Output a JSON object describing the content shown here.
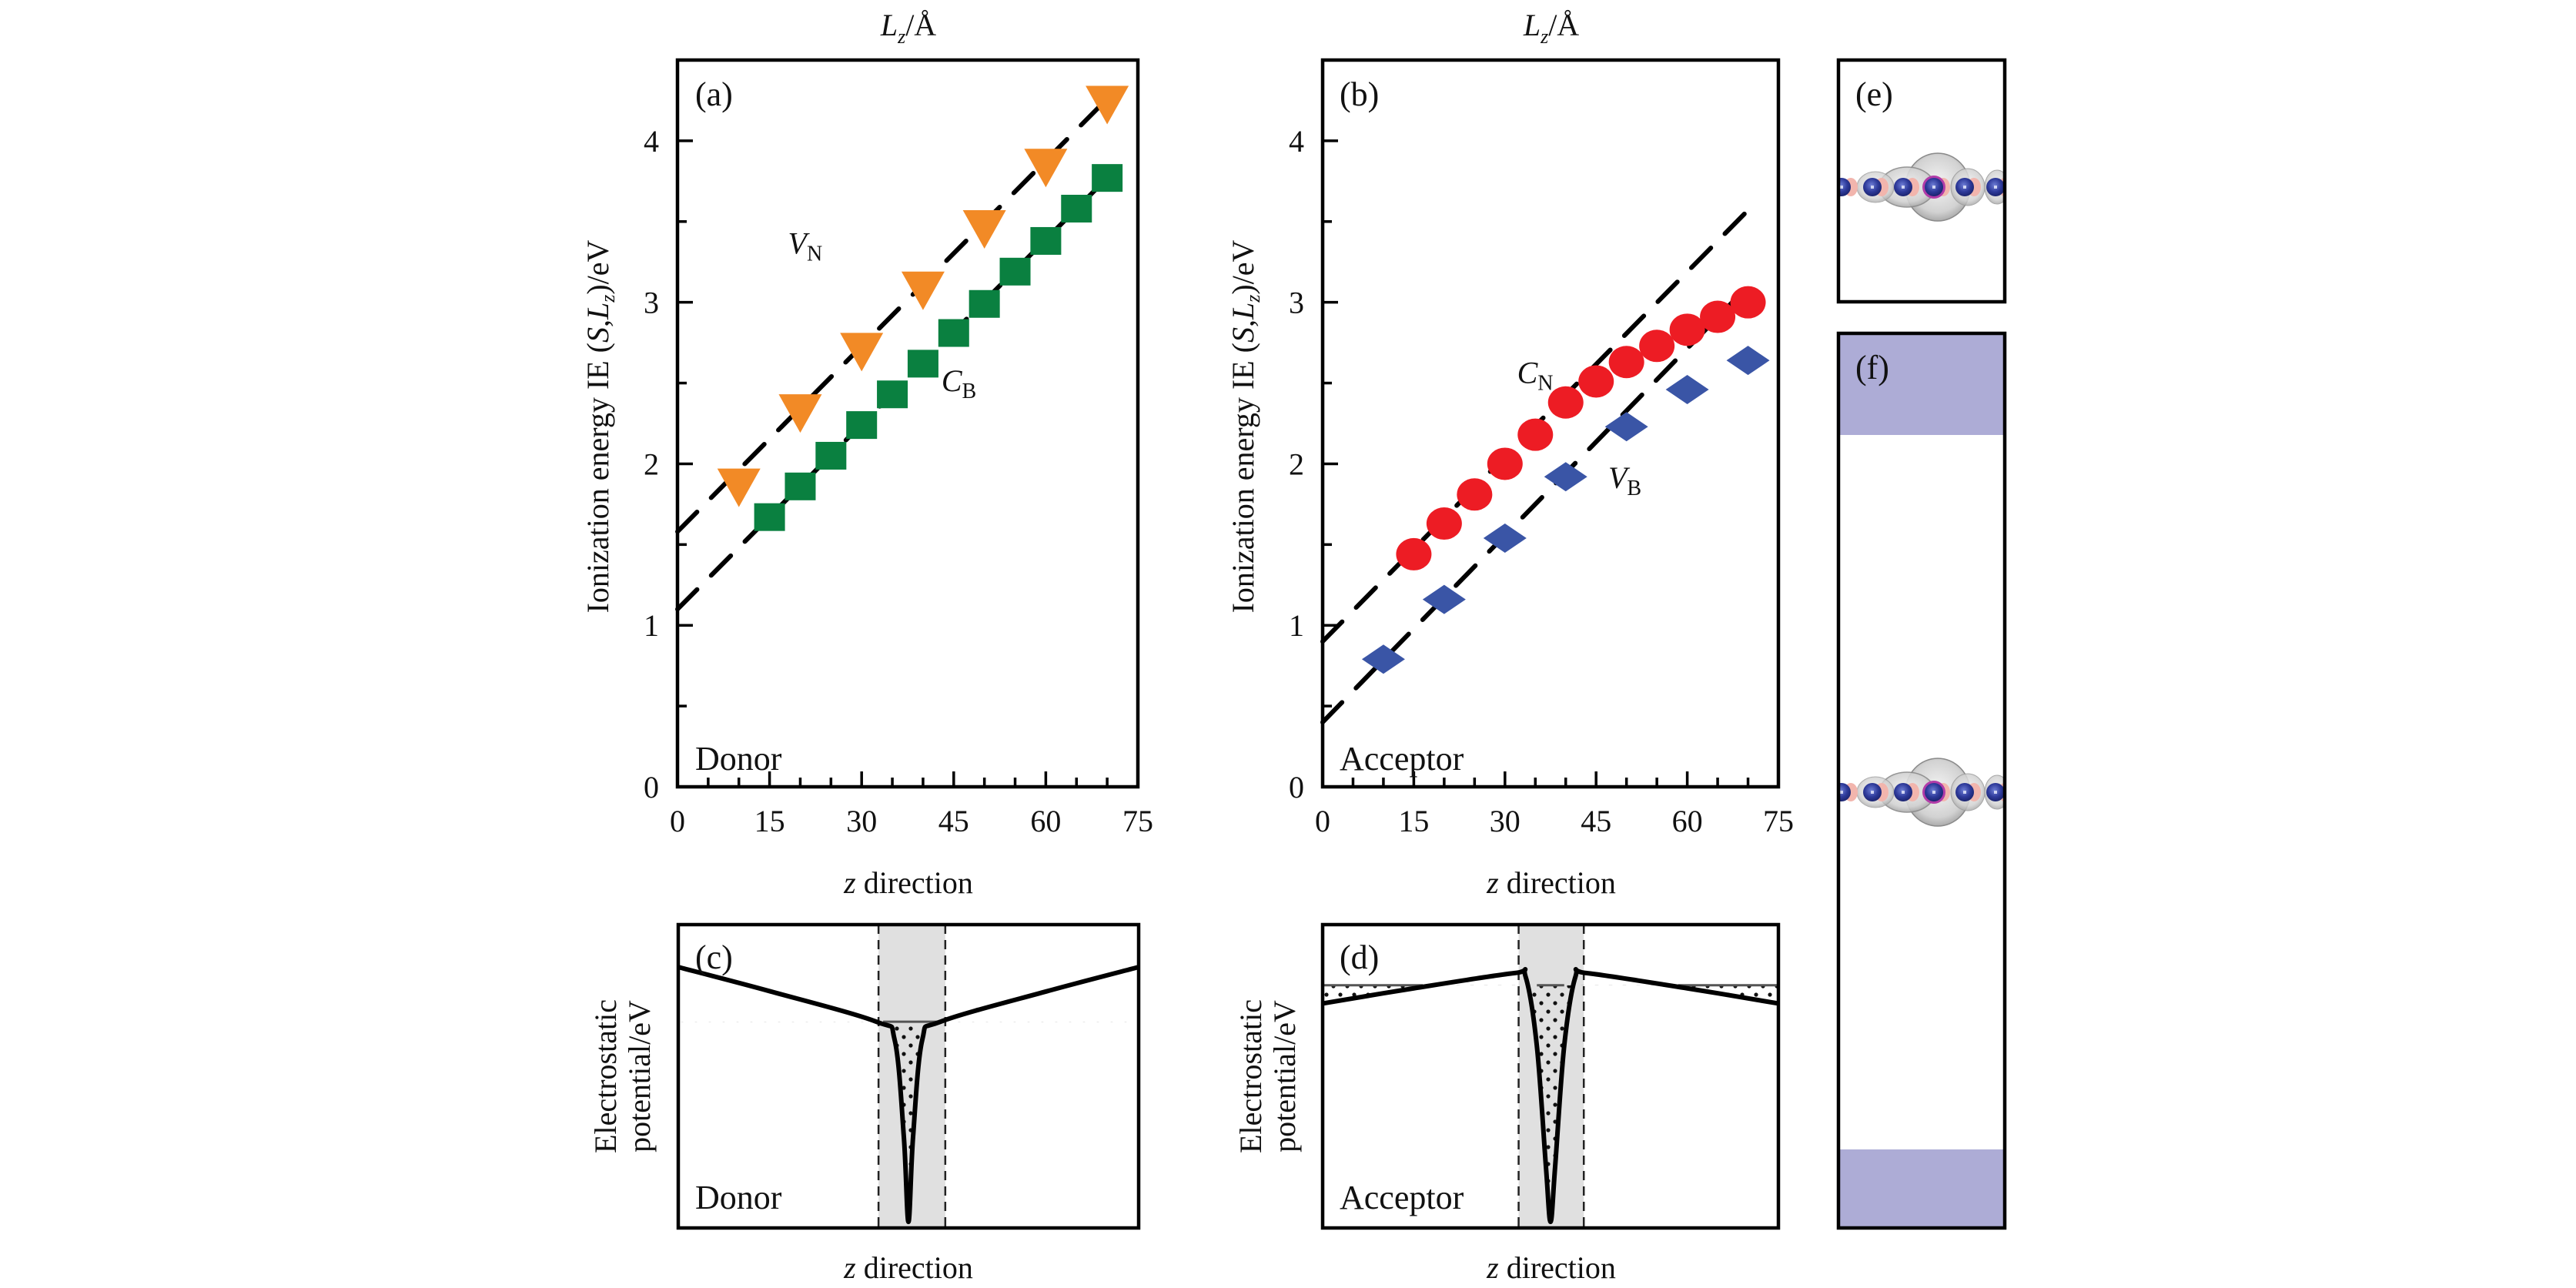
{
  "figure": {
    "top_xlabel_a": "L_z/Å",
    "top_xlabel_b": "L_z/Å",
    "panel_labels": {
      "a": "(a)",
      "b": "(b)",
      "c": "(c)",
      "d": "(d)",
      "e": "(e)",
      "f": "(f)"
    },
    "colors": {
      "VN": "#f28a26",
      "CB": "#0a8040",
      "CN": "#ed1c24",
      "VB": "#3a55a6",
      "shade": "#e0e0e0",
      "vacuum": "#adacd6",
      "atom": "#2e3a9a",
      "atom_halo": "#f2b5ad",
      "orbital": "#c8c8c8"
    }
  },
  "chart_data": [
    {
      "id": "a",
      "type": "scatter",
      "title": "",
      "corner_label": "Donor",
      "xlabel": "z direction",
      "ylabel": "Ionization energy IE (S,L_z)/eV",
      "top_label": "L_z/Å",
      "xlim": [
        0,
        75
      ],
      "ylim": [
        0,
        4.5
      ],
      "xticks": [
        0,
        15,
        30,
        45,
        60,
        75
      ],
      "xminor_step": 5,
      "yticks": [
        0,
        1,
        2,
        3,
        4
      ],
      "yminor_step": 0.5,
      "grid": false,
      "series": [
        {
          "name": "V_N",
          "label_main": "V",
          "label_sub": "N",
          "marker": "triangle-down",
          "color_key": "VN",
          "x": [
            10,
            20,
            30,
            40,
            50,
            60,
            70
          ],
          "y": [
            1.88,
            2.34,
            2.72,
            3.1,
            3.48,
            3.86,
            4.25
          ],
          "label_at": [
            18,
            3.3
          ]
        },
        {
          "name": "C_B",
          "label_main": "C",
          "label_sub": "B",
          "marker": "square",
          "color_key": "CB",
          "x": [
            15,
            20,
            25,
            30,
            35,
            40,
            45,
            50,
            55,
            60,
            65,
            70
          ],
          "y": [
            1.67,
            1.86,
            2.05,
            2.24,
            2.43,
            2.62,
            2.81,
            2.99,
            3.19,
            3.38,
            3.58,
            3.77
          ],
          "label_at": [
            43,
            2.45
          ]
        }
      ],
      "fit_lines": [
        {
          "x": [
            0,
            70
          ],
          "y": [
            1.58,
            4.26
          ]
        },
        {
          "x": [
            0,
            70
          ],
          "y": [
            1.1,
            3.77
          ]
        }
      ]
    },
    {
      "id": "b",
      "type": "scatter",
      "title": "",
      "corner_label": "Acceptor",
      "xlabel": "z direction",
      "ylabel": "Ionization energy IE (S,L_z)/eV",
      "top_label": "L_z/Å",
      "xlim": [
        0,
        75
      ],
      "ylim": [
        0,
        4.5
      ],
      "xticks": [
        0,
        15,
        30,
        45,
        60,
        75
      ],
      "xminor_step": 5,
      "yticks": [
        0,
        1,
        2,
        3,
        4
      ],
      "yminor_step": 0.5,
      "grid": false,
      "series": [
        {
          "name": "C_N",
          "label_main": "C",
          "label_sub": "N",
          "marker": "circle",
          "color_key": "CN",
          "x": [
            15,
            20,
            25,
            30,
            35,
            40,
            45,
            50,
            55,
            60,
            65,
            70
          ],
          "y": [
            1.44,
            1.63,
            1.81,
            2.0,
            2.18,
            2.38,
            2.51,
            2.63,
            2.73,
            2.83,
            2.91,
            3.0
          ],
          "label_at": [
            32,
            2.5
          ]
        },
        {
          "name": "V_B",
          "label_main": "V",
          "label_sub": "B",
          "marker": "diamond",
          "color_key": "VB",
          "x": [
            10,
            20,
            30,
            40,
            50,
            60,
            70
          ],
          "y": [
            0.79,
            1.16,
            1.54,
            1.92,
            2.23,
            2.46,
            2.64
          ],
          "label_at": [
            47,
            1.85
          ]
        }
      ],
      "fit_lines": [
        {
          "x": [
            0,
            70
          ],
          "y": [
            0.9,
            3.57
          ]
        },
        {
          "x": [
            0,
            70
          ],
          "y": [
            0.4,
            3.1
          ]
        }
      ]
    },
    {
      "id": "c",
      "type": "line",
      "title": "",
      "schematic": true,
      "corner_label": "Donor",
      "xlabel": "z direction",
      "ylabel": "Electrostatic potential/eV",
      "ylabel_line1": "Electrostatic",
      "ylabel_line2": "potential/eV",
      "xlim": [
        0,
        1
      ],
      "ylim": [
        0,
        1
      ],
      "shaded_region": [
        0.435,
        0.58
      ],
      "curve": {
        "x": [
          0,
          0.2,
          0.43,
          0.47,
          0.49,
          0.5,
          0.51,
          0.53,
          0.57,
          0.8,
          1.0
        ],
        "y": [
          0.86,
          0.78,
          0.68,
          0.62,
          0.3,
          0.02,
          0.3,
          0.62,
          0.68,
          0.78,
          0.86
        ]
      },
      "fermi_level": 0.68,
      "filled": "well"
    },
    {
      "id": "d",
      "type": "line",
      "title": "",
      "schematic": true,
      "corner_label": "Acceptor",
      "xlabel": "z direction",
      "ylabel": "Electrostatic potential/eV",
      "ylabel_line1": "Electrostatic",
      "ylabel_line2": "potential/eV",
      "xlim": [
        0,
        1
      ],
      "ylim": [
        0,
        1
      ],
      "shaded_region": [
        0.43,
        0.573
      ],
      "curve": {
        "x": [
          0,
          0.2,
          0.42,
          0.445,
          0.47,
          0.49,
          0.5,
          0.51,
          0.53,
          0.555,
          0.58,
          0.8,
          1.0
        ],
        "y": [
          0.74,
          0.79,
          0.84,
          0.83,
          0.6,
          0.2,
          0.02,
          0.2,
          0.6,
          0.83,
          0.84,
          0.79,
          0.74
        ]
      },
      "fermi_level": 0.8,
      "filled": "wings-and-well"
    }
  ],
  "structure_panels": {
    "e": {
      "label": "(e)",
      "atom_count": 6,
      "defect_index": 3
    },
    "f": {
      "label": "(f)",
      "atom_count": 6,
      "defect_index": 3,
      "vacuum_regions": [
        "top",
        "bottom"
      ]
    }
  }
}
